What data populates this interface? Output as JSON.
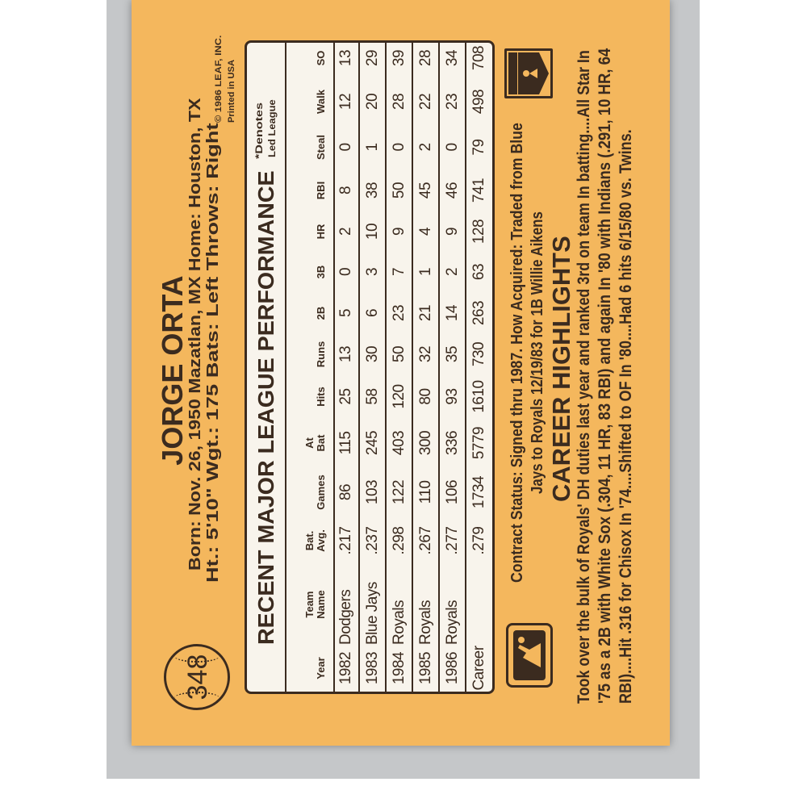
{
  "card": {
    "number": "348",
    "player_name": "JORGE ORTA",
    "bio_line1": "Born: Nov. 26, 1950   Mazatlan, MX   Home: Houston, TX",
    "bio_line2": "Ht.: 5'10\"   Wgt.: 175   Bats: Left   Throws: Right",
    "copyright_line1": "© 1986 LEAF, INC.",
    "copyright_line2": "Printed in USA",
    "card_color": "#f4b75d",
    "ink_color": "#3b2b1f"
  },
  "table": {
    "title": "RECENT MAJOR LEAGUE PERFORMANCE",
    "footnote_line1": "*Denotes",
    "footnote_line2": "Led League",
    "headers": [
      "Year",
      "Team\nName",
      "Bat.\nAvg.",
      "Games",
      "At\nBat",
      "Hits",
      "Runs",
      "2B",
      "3B",
      "HR",
      "RBI",
      "Steal",
      "Walk",
      "SO"
    ],
    "rows": [
      [
        "1982",
        "Dodgers",
        ".217",
        "86",
        "115",
        "25",
        "13",
        "5",
        "0",
        "2",
        "8",
        "0",
        "12",
        "13"
      ],
      [
        "1983",
        "Blue Jays",
        ".237",
        "103",
        "245",
        "58",
        "30",
        "6",
        "3",
        "10",
        "38",
        "1",
        "20",
        "29"
      ],
      [
        "1984",
        "Royals",
        ".298",
        "122",
        "403",
        "120",
        "50",
        "23",
        "7",
        "9",
        "50",
        "0",
        "28",
        "39"
      ],
      [
        "1985",
        "Royals",
        ".267",
        "110",
        "300",
        "80",
        "32",
        "21",
        "1",
        "4",
        "45",
        "2",
        "22",
        "28"
      ],
      [
        "1986",
        "Royals",
        ".277",
        "106",
        "336",
        "93",
        "35",
        "14",
        "2",
        "9",
        "46",
        "0",
        "23",
        "34"
      ],
      [
        "Career",
        "",
        ".279",
        "1734",
        "5779",
        "1610",
        "730",
        "263",
        "63",
        "128",
        "741",
        "79",
        "498",
        "708"
      ]
    ]
  },
  "contract": {
    "line1": "Contract Status: Signed thru 1987. How Acquired: Traded from Blue",
    "line2": "Jays to Royals 12/19/83 for 1B Willie Aikens"
  },
  "highlights": {
    "title": "CAREER HIGHLIGHTS",
    "line1": "Took over the bulk of Royals' DH duties last year and ranked 3rd on team In batting....All Star In",
    "line2": "'75 as a 2B with White Sox (.304, 11 HR, 83 RBI) and again In '80 with Indians (.291, 10 HR, 64",
    "line3": "RBI)....Hit .316 for Chisox In '74....Shifted to OF In '80....Had 6 hits 6/15/80 vs. Twins."
  },
  "logos": {
    "mlb": "MLB",
    "mlbpa": "MLBPA"
  }
}
